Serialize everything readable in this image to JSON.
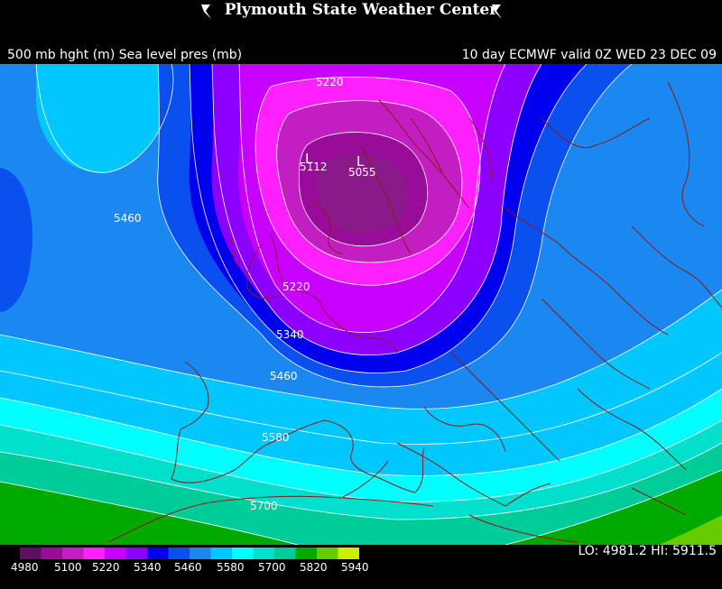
{
  "header": {
    "title": "Plymouth State Weather Center",
    "logo_left": "swoosh-logo",
    "logo_right": "swoosh-logo"
  },
  "subtitle": {
    "left": "500 mb hght (m) Sea level pres (mb)",
    "right": "10 day ECMWF valid 0Z WED 23 DEC 09"
  },
  "map": {
    "contour_labels": [
      "5220",
      "5112",
      "5055",
      "5460",
      "5220",
      "5340",
      "5460",
      "5580",
      "5700"
    ],
    "low_markers": [
      "L",
      "L"
    ]
  },
  "legend": {
    "ticks": [
      "4980",
      "5100",
      "5220",
      "5340",
      "5460",
      "5580",
      "5700",
      "5820",
      "5940"
    ],
    "colors": [
      "#5e0f5e",
      "#990c99",
      "#c21ec2",
      "#ff20ff",
      "#c800ff",
      "#8c00ff",
      "#0000ee",
      "#0a50ee",
      "#1a88f0",
      "#00c8ff",
      "#00ffff",
      "#00e0cc",
      "#00cc99",
      "#00aa00",
      "#66cc00",
      "#ccee00"
    ]
  },
  "lohi": {
    "text": "LO: 4981.2  HI: 5911.5"
  }
}
